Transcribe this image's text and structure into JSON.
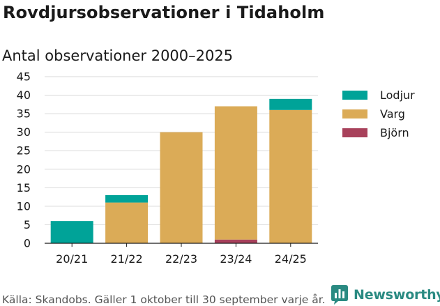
{
  "header": {
    "title": "Rovdjursobservationer i Tidaholm",
    "subtitle": "Antal observationer 2000–2025"
  },
  "footer": {
    "source": "Källa: Skandobs. Gäller 1 oktober till 30 september varje år.",
    "brand": "Newsworthy"
  },
  "colors": {
    "lodjur": "#00a398",
    "varg": "#dbab57",
    "bjorn": "#a8415b",
    "grid": "#d9d9d9",
    "brand": "#2a8a82"
  },
  "chart_data": {
    "type": "bar",
    "stacked": true,
    "title": "Antal observationer 2000–2025",
    "xlabel": "",
    "ylabel": "",
    "categories": [
      "20/21",
      "21/22",
      "22/23",
      "23/24",
      "24/25"
    ],
    "ylim": [
      0,
      45
    ],
    "yticks": [
      0,
      5,
      10,
      15,
      20,
      25,
      30,
      35,
      40,
      45
    ],
    "grid": true,
    "legend_position": "right",
    "legend_order": [
      "Lodjur",
      "Varg",
      "Björn"
    ],
    "series": [
      {
        "name": "Björn",
        "color": "#a8415b",
        "values": [
          0,
          0,
          0,
          1,
          0
        ]
      },
      {
        "name": "Varg",
        "color": "#dbab57",
        "values": [
          0,
          11,
          30,
          36,
          36
        ]
      },
      {
        "name": "Lodjur",
        "color": "#00a398",
        "values": [
          6,
          2,
          0,
          0,
          3
        ]
      }
    ]
  }
}
